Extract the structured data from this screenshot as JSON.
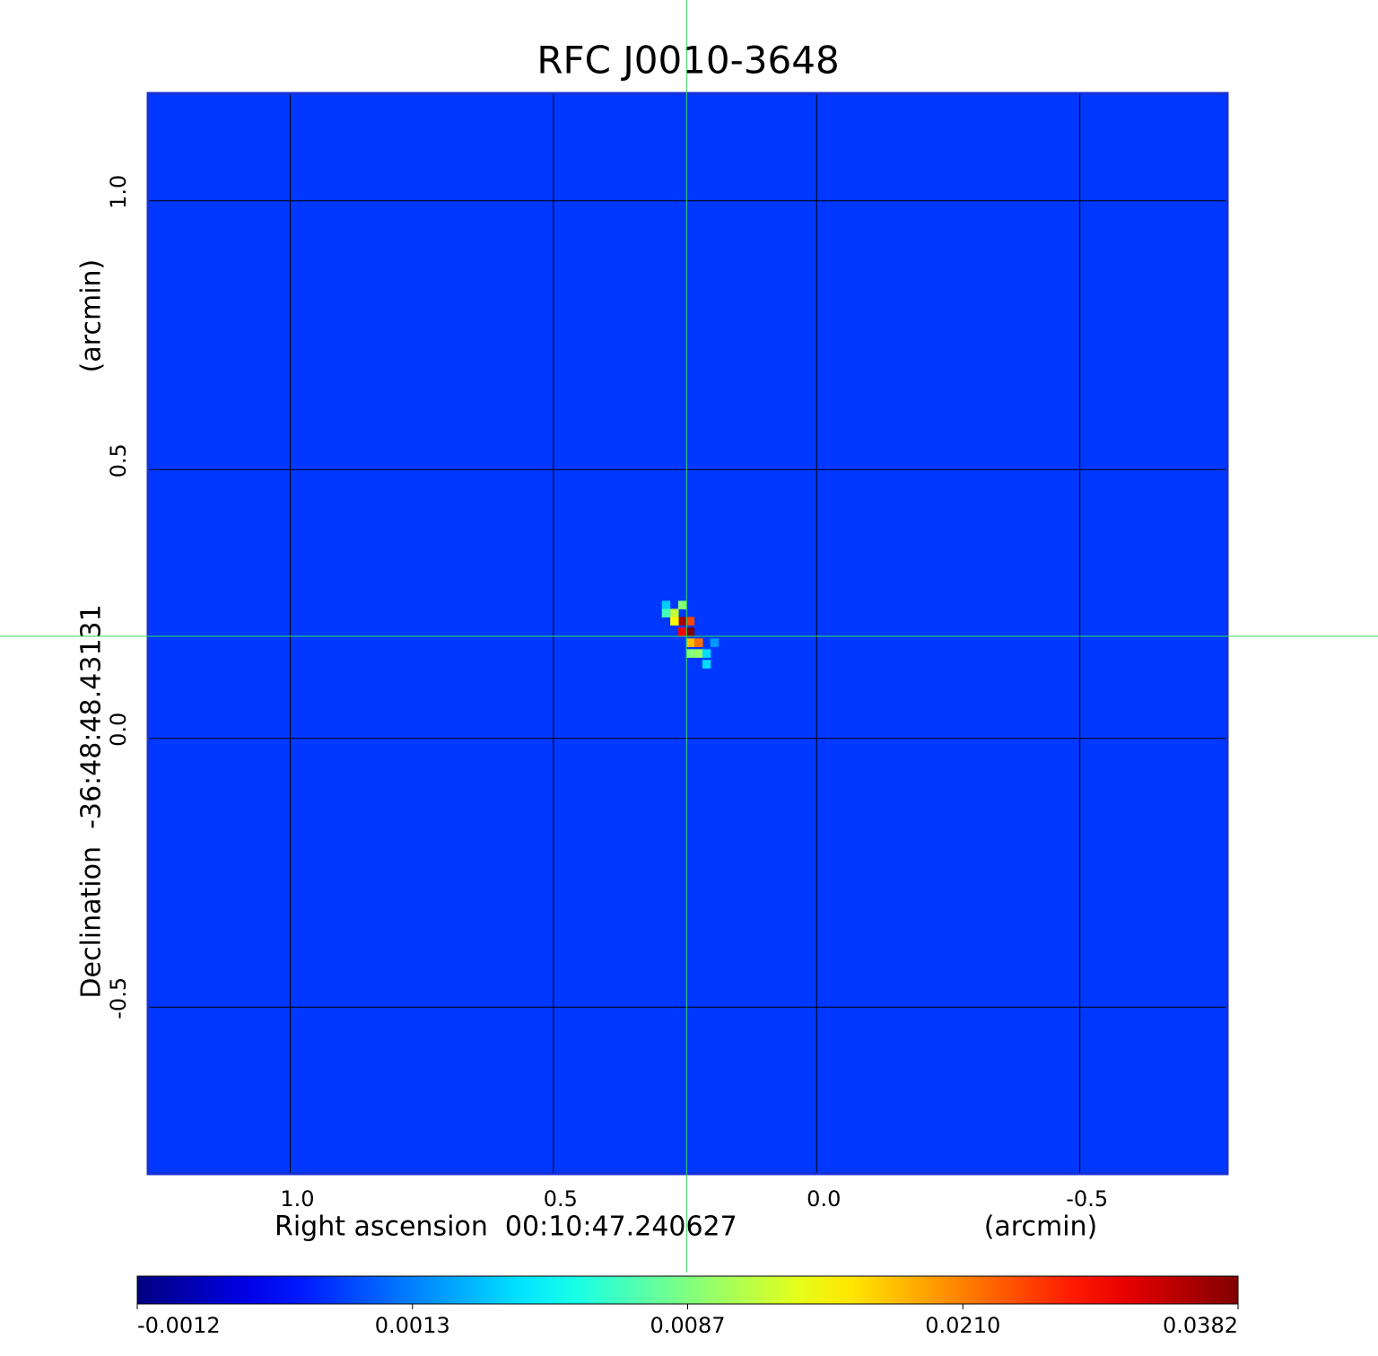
{
  "chart_data": {
    "type": "heatmap",
    "title": "RFC J0010-3648",
    "title_color": "#1414d2",
    "xlabel": "Right ascension  00:10:47.240627",
    "xunit": "(arcmin)",
    "ylabel": "Declination  -36:48:48.43131",
    "yunit": "(arcmin)",
    "xlim": [
      1.27,
      -0.78
    ],
    "ylim": [
      -0.81,
      1.2
    ],
    "xticks": [
      {
        "value": 1,
        "label": "1.0"
      },
      {
        "value": 0.5,
        "label": "0.5"
      },
      {
        "value": 0,
        "label": "0.0"
      },
      {
        "value": -0.5,
        "label": "-0.5"
      }
    ],
    "yticks": [
      {
        "value": 1,
        "label": "1.0"
      },
      {
        "value": 0.5,
        "label": "0.5"
      },
      {
        "value": 0,
        "label": "0.0"
      },
      {
        "value": -0.5,
        "label": "-0.5"
      }
    ],
    "grid": true,
    "frame_color": "#1a2fd6",
    "colormap": "jet",
    "colorbar_ticks": [
      -0.0012,
      0.0013,
      0.0087,
      {
        "value": 0.021,
        "label": "0.0210"
      },
      0.0382
    ],
    "background_value": 0.0006,
    "crosshair": {
      "x": 0.247,
      "y": 0.19
    },
    "crosshair_color": "#33dd55",
    "pixel_size": 0.016,
    "pixels": {
      "x": [
        0.255,
        0.24,
        0.255,
        0.24,
        0.27,
        0.255,
        0.27,
        0.224,
        0.24,
        0.224,
        0.24,
        0.286,
        0.209,
        0.286,
        0.209,
        0.194
      ],
      "y": [
        0.218,
        0.198,
        0.198,
        0.218,
        0.233,
        0.248,
        0.218,
        0.178,
        0.178,
        0.158,
        0.158,
        0.248,
        0.138,
        0.233,
        0.158,
        0.178
      ],
      "values": [
        0.036,
        0.038,
        0.03,
        0.025,
        0.012,
        0.009,
        0.015,
        0.022,
        0.018,
        0.01,
        0.009,
        0.0035,
        0.004,
        0.007,
        0.004,
        0.002
      ]
    }
  }
}
